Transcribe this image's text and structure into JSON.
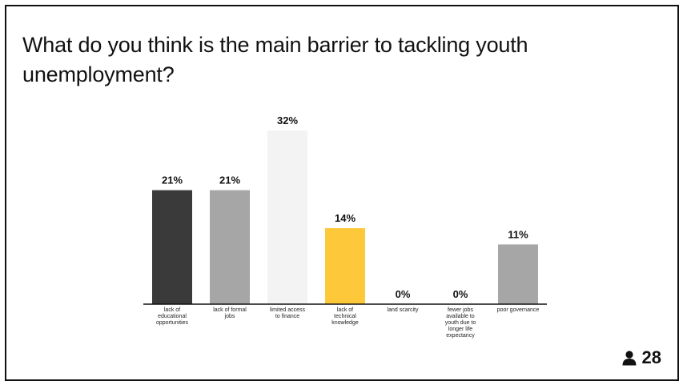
{
  "question": {
    "text": "What do you think is the main barrier to tackling youth unemployment?"
  },
  "participants": {
    "icon": "person-icon",
    "count": "28"
  },
  "chart_data": {
    "type": "bar",
    "categories": [
      "lack of educational opportunities",
      "lack of formal jobs",
      "limited access to finance",
      "lack of technical knowledge",
      "land scarcity",
      "fewer jobs available to youth due to longer life expectancy",
      "poor governance"
    ],
    "values": [
      21,
      21,
      32,
      14,
      0,
      0,
      11
    ],
    "value_labels": [
      "21%",
      "21%",
      "32%",
      "14%",
      "0%",
      "0%",
      "11%"
    ],
    "colors": [
      "#3a3a3a",
      "#a6a6a6",
      "#f3f3f3",
      "#fdc93a",
      "#a6a6a6",
      "#a6a6a6",
      "#a6a6a6"
    ],
    "ylim": [
      0,
      32
    ],
    "unit": "%",
    "grid": false,
    "legend": "none"
  }
}
